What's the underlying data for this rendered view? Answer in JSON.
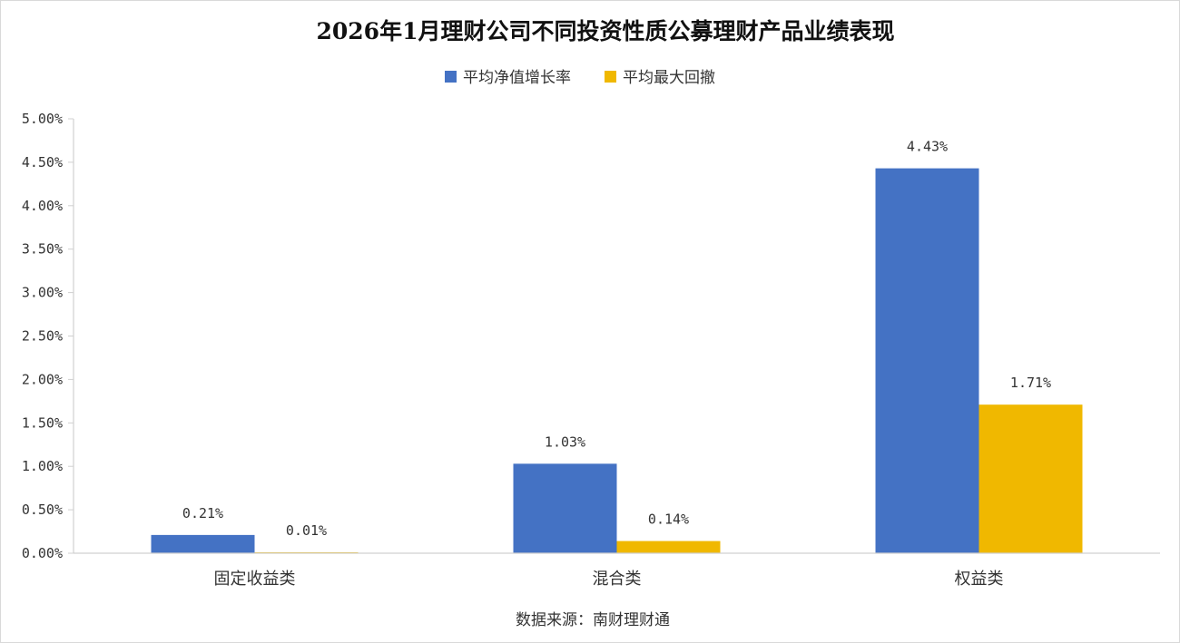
{
  "chart_data": {
    "type": "bar",
    "title": "2026年1月理财公司不同投资性质公募理财产品业绩表现",
    "categories": [
      "固定收益类",
      "混合类",
      "权益类"
    ],
    "series": [
      {
        "name": "平均净值增长率",
        "color": "#4472C4",
        "values": [
          0.21,
          1.03,
          4.43
        ],
        "labels": [
          "0.21%",
          "1.03%",
          "4.43%"
        ]
      },
      {
        "name": "平均最大回撤",
        "color": "#F0B800",
        "values": [
          0.01,
          0.14,
          1.71
        ],
        "labels": [
          "0.01%",
          "0.14%",
          "1.71%"
        ]
      }
    ],
    "ylim": [
      0,
      5
    ],
    "yticks": [
      0,
      0.5,
      1,
      1.5,
      2,
      2.5,
      3,
      3.5,
      4,
      4.5,
      5
    ],
    "ytick_labels": [
      "0.00%",
      "0.50%",
      "1.00%",
      "1.50%",
      "2.00%",
      "2.50%",
      "3.00%",
      "3.50%",
      "4.00%",
      "4.50%",
      "5.00%"
    ],
    "grid": false,
    "legend_position": "top-center",
    "source": "数据来源：南财理财通"
  }
}
